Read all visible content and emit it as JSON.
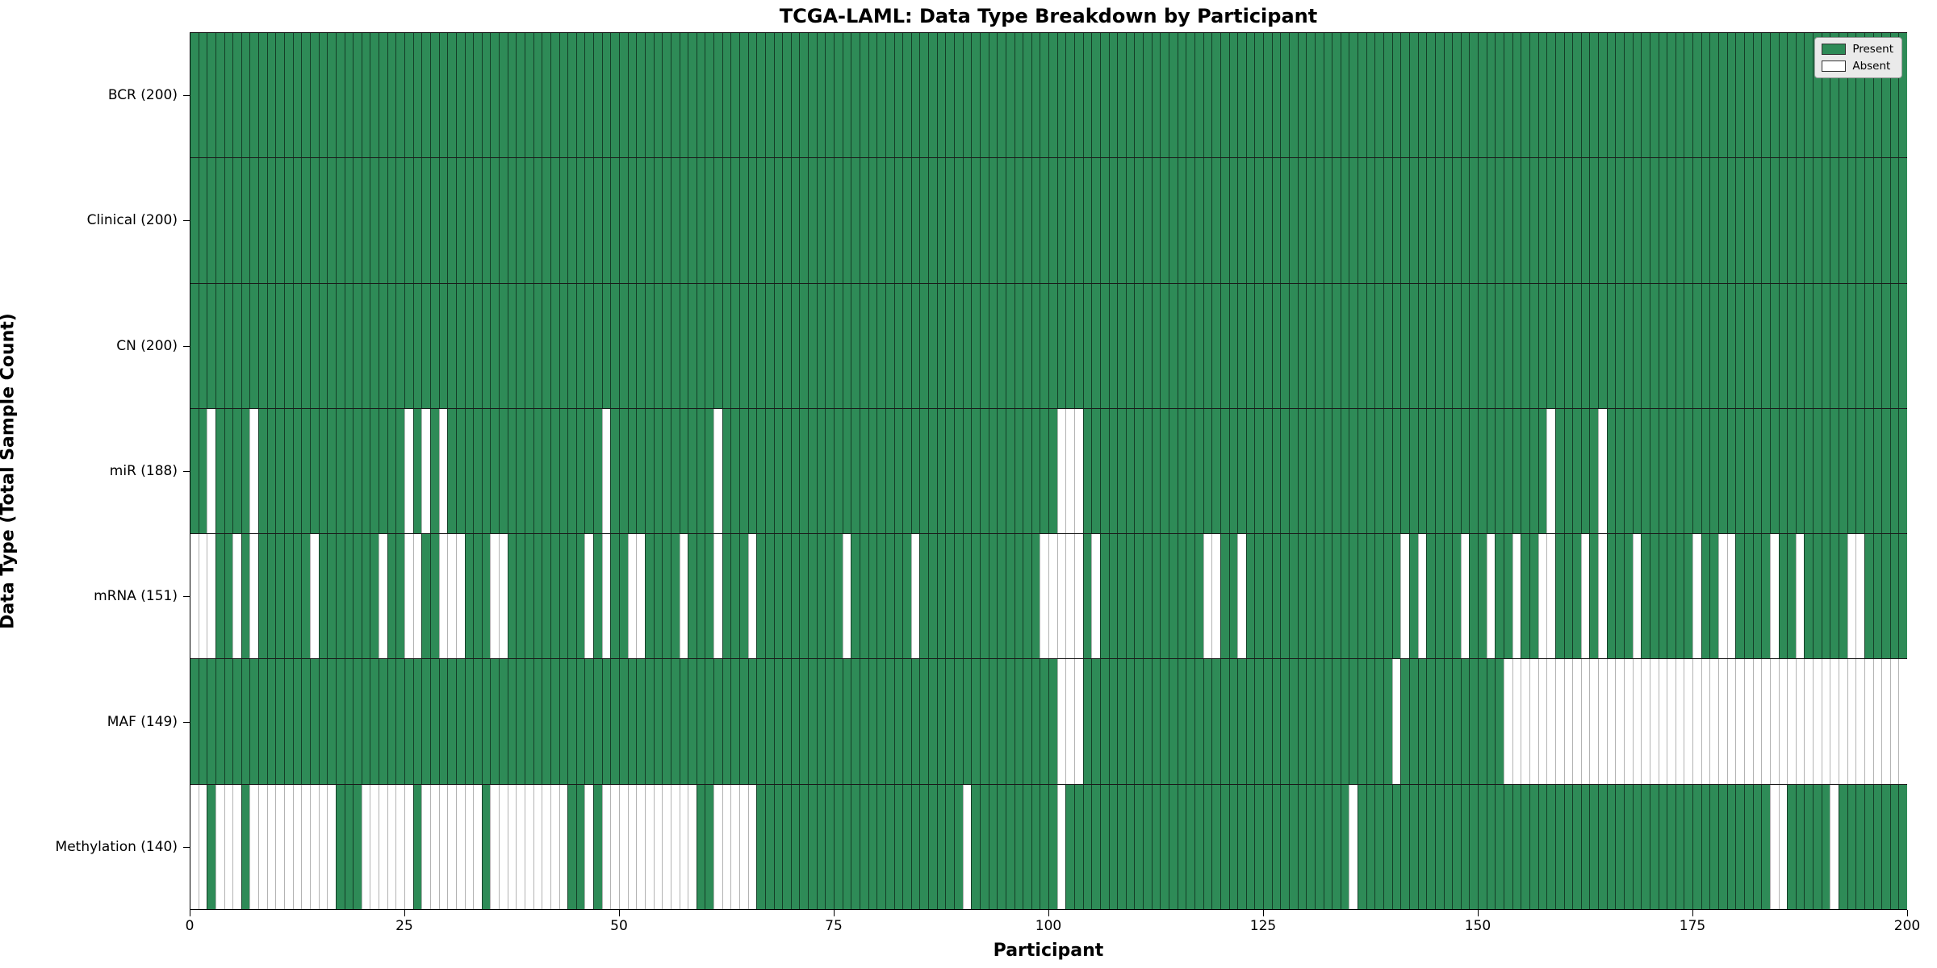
{
  "chart_data": {
    "type": "heatmap",
    "title": "TCGA-LAML: Data Type Breakdown by Participant",
    "xlabel": "Participant",
    "ylabel": "Data Type (Total Sample Count)",
    "n_participants": 200,
    "x_ticks": [
      0,
      25,
      50,
      75,
      100,
      125,
      150,
      175,
      200
    ],
    "xlim": [
      0,
      200
    ],
    "grid": "off",
    "legend_position": "upper right",
    "legend": {
      "present_label": "Present",
      "absent_label": "Absent"
    },
    "colors": {
      "present": "#2e8b57",
      "absent": "#ffffff",
      "row_divider": "#1a1a1a",
      "spine": "#000000",
      "legend_bg": "#eaeaea"
    },
    "rows": [
      {
        "name": "BCR",
        "label": "BCR (200)",
        "present_count": 200,
        "absent": []
      },
      {
        "name": "Clinical",
        "label": "Clinical (200)",
        "present_count": 200,
        "absent": []
      },
      {
        "name": "CN",
        "label": "CN (200)",
        "present_count": 200,
        "absent": []
      },
      {
        "name": "miR",
        "label": "miR (188)",
        "present_count": 188,
        "absent": [
          2,
          7,
          25,
          27,
          29,
          48,
          61,
          101,
          102,
          103,
          158,
          164
        ]
      },
      {
        "name": "mRNA",
        "label": "mRNA (151)",
        "present_count": 151,
        "absent": [
          0,
          1,
          2,
          5,
          7,
          14,
          22,
          25,
          26,
          29,
          30,
          31,
          35,
          36,
          46,
          48,
          51,
          52,
          57,
          61,
          65,
          76,
          84,
          99,
          100,
          101,
          102,
          103,
          105,
          118,
          119,
          122,
          141,
          143,
          148,
          151,
          154,
          157,
          158,
          162,
          164,
          168,
          175,
          178,
          179,
          184,
          187,
          193,
          194
        ]
      },
      {
        "name": "MAF",
        "label": "MAF (149)",
        "present_count": 149,
        "absent": [
          101,
          102,
          103,
          140,
          153,
          154,
          155,
          156,
          157,
          158,
          159,
          160,
          161,
          162,
          163,
          164,
          165,
          166,
          167,
          168,
          169,
          170,
          171,
          172,
          173,
          174,
          175,
          176,
          177,
          178,
          179,
          180,
          181,
          182,
          183,
          184,
          185,
          186,
          187,
          188,
          189,
          190,
          191,
          192,
          193,
          194,
          195,
          196,
          197,
          198,
          199
        ]
      },
      {
        "name": "Methylation",
        "label": "Methylation (140)",
        "present_count": 140,
        "absent": [
          0,
          1,
          3,
          4,
          5,
          7,
          8,
          9,
          10,
          11,
          12,
          13,
          14,
          15,
          16,
          20,
          21,
          22,
          23,
          24,
          25,
          27,
          28,
          29,
          30,
          31,
          32,
          33,
          35,
          36,
          37,
          38,
          39,
          40,
          41,
          42,
          43,
          46,
          48,
          49,
          50,
          51,
          52,
          53,
          54,
          55,
          56,
          57,
          58,
          61,
          62,
          63,
          64,
          65,
          90,
          101,
          135,
          184,
          185,
          191
        ]
      }
    ]
  }
}
